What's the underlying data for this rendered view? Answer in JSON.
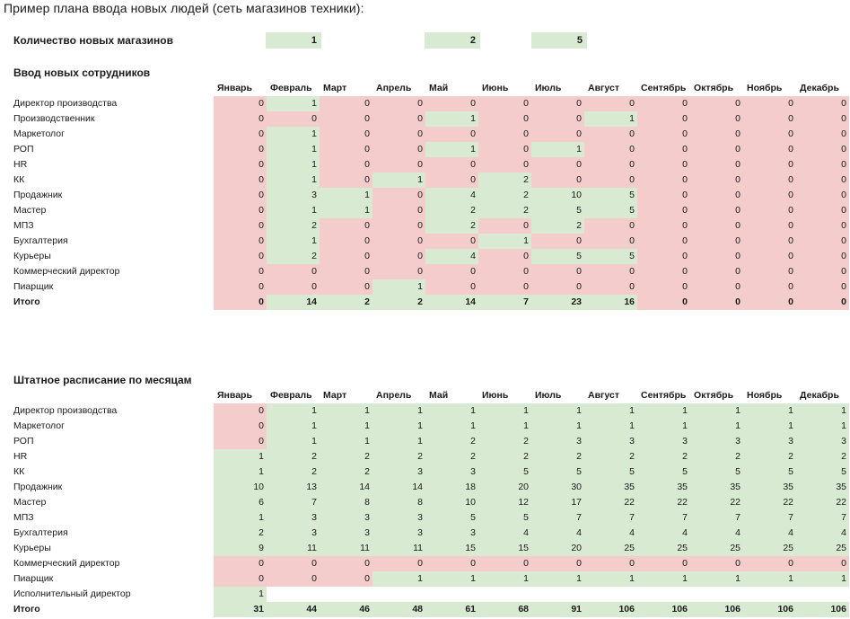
{
  "title": "Пример плана ввода новых людей (сеть магазинов техники):",
  "stores": {
    "label": "Количество новых магазинов",
    "values": [
      "1",
      "2",
      "5"
    ]
  },
  "months": [
    "Январь",
    "Февраль",
    "Март",
    "Апрель",
    "Май",
    "Июнь",
    "Июль",
    "Август",
    "Сентябрь",
    "Октябрь",
    "Ноябрь",
    "Декабрь"
  ],
  "hiring": {
    "title": "Ввод новых сотрудников",
    "rows": [
      {
        "label": "Директор производства",
        "values": [
          "0",
          "1",
          "0",
          "0",
          "0",
          "0",
          "0",
          "0",
          "0",
          "0",
          "0",
          "0"
        ],
        "colors": [
          "r",
          "g",
          "r",
          "r",
          "r",
          "r",
          "r",
          "r",
          "r",
          "r",
          "r",
          "r"
        ]
      },
      {
        "label": "Производственник",
        "values": [
          "0",
          "0",
          "0",
          "0",
          "1",
          "0",
          "0",
          "1",
          "0",
          "0",
          "0",
          "0"
        ],
        "colors": [
          "r",
          "r",
          "r",
          "r",
          "g",
          "r",
          "r",
          "g",
          "r",
          "r",
          "r",
          "r"
        ]
      },
      {
        "label": "Маркетолог",
        "values": [
          "0",
          "1",
          "0",
          "0",
          "0",
          "0",
          "0",
          "0",
          "0",
          "0",
          "0",
          "0"
        ],
        "colors": [
          "r",
          "g",
          "r",
          "r",
          "r",
          "r",
          "r",
          "r",
          "r",
          "r",
          "r",
          "r"
        ]
      },
      {
        "label": "РОП",
        "values": [
          "0",
          "1",
          "0",
          "0",
          "1",
          "0",
          "1",
          "0",
          "0",
          "0",
          "0",
          "0"
        ],
        "colors": [
          "r",
          "g",
          "r",
          "r",
          "g",
          "r",
          "g",
          "r",
          "r",
          "r",
          "r",
          "r"
        ]
      },
      {
        "label": "HR",
        "values": [
          "0",
          "1",
          "0",
          "0",
          "0",
          "0",
          "0",
          "0",
          "0",
          "0",
          "0",
          "0"
        ],
        "colors": [
          "r",
          "g",
          "r",
          "r",
          "r",
          "r",
          "r",
          "r",
          "r",
          "r",
          "r",
          "r"
        ]
      },
      {
        "label": "КК",
        "values": [
          "0",
          "1",
          "0",
          "1",
          "0",
          "2",
          "0",
          "0",
          "0",
          "0",
          "0",
          "0"
        ],
        "colors": [
          "r",
          "g",
          "r",
          "g",
          "r",
          "g",
          "r",
          "r",
          "r",
          "r",
          "r",
          "r"
        ]
      },
      {
        "label": "Продажник",
        "values": [
          "0",
          "3",
          "1",
          "0",
          "4",
          "2",
          "10",
          "5",
          "0",
          "0",
          "0",
          "0"
        ],
        "colors": [
          "r",
          "g",
          "g",
          "r",
          "g",
          "g",
          "g",
          "g",
          "r",
          "r",
          "r",
          "r"
        ]
      },
      {
        "label": "Мастер",
        "values": [
          "0",
          "1",
          "1",
          "0",
          "2",
          "2",
          "5",
          "5",
          "0",
          "0",
          "0",
          "0"
        ],
        "colors": [
          "r",
          "g",
          "g",
          "r",
          "g",
          "g",
          "g",
          "g",
          "r",
          "r",
          "r",
          "r"
        ]
      },
      {
        "label": "МПЗ",
        "values": [
          "0",
          "2",
          "0",
          "0",
          "2",
          "0",
          "2",
          "0",
          "0",
          "0",
          "0",
          "0"
        ],
        "colors": [
          "r",
          "g",
          "r",
          "r",
          "g",
          "r",
          "g",
          "r",
          "r",
          "r",
          "r",
          "r"
        ]
      },
      {
        "label": "Бухгалтерия",
        "values": [
          "0",
          "1",
          "0",
          "0",
          "0",
          "1",
          "0",
          "0",
          "0",
          "0",
          "0",
          "0"
        ],
        "colors": [
          "r",
          "g",
          "r",
          "r",
          "r",
          "g",
          "r",
          "r",
          "r",
          "r",
          "r",
          "r"
        ]
      },
      {
        "label": "Курьеры",
        "values": [
          "0",
          "2",
          "0",
          "0",
          "4",
          "0",
          "5",
          "5",
          "0",
          "0",
          "0",
          "0"
        ],
        "colors": [
          "r",
          "g",
          "r",
          "r",
          "g",
          "r",
          "g",
          "g",
          "r",
          "r",
          "r",
          "r"
        ]
      },
      {
        "label": "Коммерческий директор",
        "values": [
          "0",
          "0",
          "0",
          "0",
          "0",
          "0",
          "0",
          "0",
          "0",
          "0",
          "0",
          "0"
        ],
        "colors": [
          "r",
          "r",
          "r",
          "r",
          "r",
          "r",
          "r",
          "r",
          "r",
          "r",
          "r",
          "r"
        ]
      },
      {
        "label": "Пиарщик",
        "values": [
          "0",
          "0",
          "0",
          "1",
          "0",
          "0",
          "0",
          "0",
          "0",
          "0",
          "0",
          "0"
        ],
        "colors": [
          "r",
          "r",
          "r",
          "g",
          "r",
          "r",
          "r",
          "r",
          "r",
          "r",
          "r",
          "r"
        ]
      }
    ],
    "total": {
      "label": "Итого",
      "values": [
        "0",
        "14",
        "2",
        "2",
        "14",
        "7",
        "23",
        "16",
        "0",
        "0",
        "0",
        "0"
      ],
      "colors": [
        "r",
        "g",
        "g",
        "g",
        "g",
        "g",
        "g",
        "g",
        "r",
        "r",
        "r",
        "r"
      ]
    }
  },
  "staffing": {
    "title": "Штатное расписание по месяцам",
    "rows": [
      {
        "label": "Директор производства",
        "values": [
          "0",
          "1",
          "1",
          "1",
          "1",
          "1",
          "1",
          "1",
          "1",
          "1",
          "1",
          "1"
        ],
        "colors": [
          "r",
          "g",
          "g",
          "g",
          "g",
          "g",
          "g",
          "g",
          "g",
          "g",
          "g",
          "g"
        ]
      },
      {
        "label": "Маркетолог",
        "values": [
          "0",
          "1",
          "1",
          "1",
          "1",
          "1",
          "1",
          "1",
          "1",
          "1",
          "1",
          "1"
        ],
        "colors": [
          "r",
          "g",
          "g",
          "g",
          "g",
          "g",
          "g",
          "g",
          "g",
          "g",
          "g",
          "g"
        ]
      },
      {
        "label": "РОП",
        "values": [
          "0",
          "1",
          "1",
          "1",
          "2",
          "2",
          "3",
          "3",
          "3",
          "3",
          "3",
          "3"
        ],
        "colors": [
          "r",
          "g",
          "g",
          "g",
          "g",
          "g",
          "g",
          "g",
          "g",
          "g",
          "g",
          "g"
        ]
      },
      {
        "label": "HR",
        "values": [
          "1",
          "2",
          "2",
          "2",
          "2",
          "2",
          "2",
          "2",
          "2",
          "2",
          "2",
          "2"
        ],
        "colors": [
          "g",
          "g",
          "g",
          "g",
          "g",
          "g",
          "g",
          "g",
          "g",
          "g",
          "g",
          "g"
        ]
      },
      {
        "label": "КК",
        "values": [
          "1",
          "2",
          "2",
          "3",
          "3",
          "5",
          "5",
          "5",
          "5",
          "5",
          "5",
          "5"
        ],
        "colors": [
          "g",
          "g",
          "g",
          "g",
          "g",
          "g",
          "g",
          "g",
          "g",
          "g",
          "g",
          "g"
        ]
      },
      {
        "label": "Продажник",
        "values": [
          "10",
          "13",
          "14",
          "14",
          "18",
          "20",
          "30",
          "35",
          "35",
          "35",
          "35",
          "35"
        ],
        "colors": [
          "g",
          "g",
          "g",
          "g",
          "g",
          "g",
          "g",
          "g",
          "g",
          "g",
          "g",
          "g"
        ]
      },
      {
        "label": "Мастер",
        "values": [
          "6",
          "7",
          "8",
          "8",
          "10",
          "12",
          "17",
          "22",
          "22",
          "22",
          "22",
          "22"
        ],
        "colors": [
          "g",
          "g",
          "g",
          "g",
          "g",
          "g",
          "g",
          "g",
          "g",
          "g",
          "g",
          "g"
        ]
      },
      {
        "label": "МПЗ",
        "values": [
          "1",
          "3",
          "3",
          "3",
          "5",
          "5",
          "7",
          "7",
          "7",
          "7",
          "7",
          "7"
        ],
        "colors": [
          "g",
          "g",
          "g",
          "g",
          "g",
          "g",
          "g",
          "g",
          "g",
          "g",
          "g",
          "g"
        ]
      },
      {
        "label": "Бухгалтерия",
        "values": [
          "2",
          "3",
          "3",
          "3",
          "3",
          "4",
          "4",
          "4",
          "4",
          "4",
          "4",
          "4"
        ],
        "colors": [
          "g",
          "g",
          "g",
          "g",
          "g",
          "g",
          "g",
          "g",
          "g",
          "g",
          "g",
          "g"
        ]
      },
      {
        "label": "Курьеры",
        "values": [
          "9",
          "11",
          "11",
          "11",
          "15",
          "15",
          "20",
          "25",
          "25",
          "25",
          "25",
          "25"
        ],
        "colors": [
          "g",
          "g",
          "g",
          "g",
          "g",
          "g",
          "g",
          "g",
          "g",
          "g",
          "g",
          "g"
        ]
      },
      {
        "label": "Коммерческий директор",
        "values": [
          "0",
          "0",
          "0",
          "0",
          "0",
          "0",
          "0",
          "0",
          "0",
          "0",
          "0",
          "0"
        ],
        "colors": [
          "r",
          "r",
          "r",
          "r",
          "r",
          "r",
          "r",
          "r",
          "r",
          "r",
          "r",
          "r"
        ]
      },
      {
        "label": "Пиарщик",
        "values": [
          "0",
          "0",
          "0",
          "1",
          "1",
          "1",
          "1",
          "1",
          "1",
          "1",
          "1",
          "1"
        ],
        "colors": [
          "r",
          "r",
          "r",
          "g",
          "g",
          "g",
          "g",
          "g",
          "g",
          "g",
          "g",
          "g"
        ]
      },
      {
        "label": "Исполнительный директор",
        "values": [
          "1",
          "",
          "",
          "",
          "",
          "",
          "",
          "",
          "",
          "",
          "",
          ""
        ],
        "colors": [
          "g",
          "",
          "",
          "",
          "",
          "",
          "",
          "",
          "",
          "",
          "",
          ""
        ]
      }
    ],
    "total": {
      "label": "Итого",
      "values": [
        "31",
        "44",
        "46",
        "48",
        "61",
        "68",
        "91",
        "106",
        "106",
        "106",
        "106",
        "106"
      ],
      "colors": [
        "g",
        "g",
        "g",
        "g",
        "g",
        "g",
        "g",
        "g",
        "g",
        "g",
        "g",
        "g"
      ]
    }
  }
}
